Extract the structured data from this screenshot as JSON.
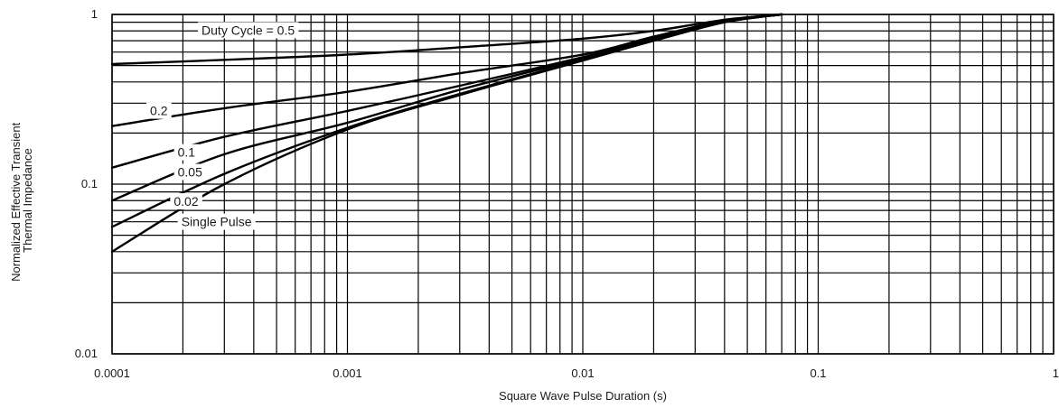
{
  "chart_data": {
    "type": "line",
    "title": "",
    "xlabel": "Square Wave Pulse Duration (s)",
    "ylabel_lines": [
      "Normalized Effective Transient",
      "Thermal Impedance"
    ],
    "x_scale": "log",
    "y_scale": "log",
    "xlim": [
      0.0001,
      1
    ],
    "ylim": [
      0.01,
      1
    ],
    "grid": true,
    "x_ticks": [
      {
        "value": 0.0001,
        "label": "0.0001"
      },
      {
        "value": 0.001,
        "label": "0.001"
      },
      {
        "value": 0.01,
        "label": "0.01"
      },
      {
        "value": 0.1,
        "label": "0.1"
      },
      {
        "value": 1,
        "label": "1"
      }
    ],
    "y_ticks": [
      {
        "value": 0.01,
        "label": "0.01"
      },
      {
        "value": 0.1,
        "label": "0.1"
      },
      {
        "value": 1,
        "label": "1"
      }
    ],
    "series": [
      {
        "name": "Duty Cycle = 0.5",
        "x": [
          0.0001,
          0.0003,
          0.001,
          0.003,
          0.01,
          0.02,
          0.04,
          0.07
        ],
        "y": [
          0.51,
          0.54,
          0.58,
          0.64,
          0.72,
          0.8,
          0.93,
          1.0
        ]
      },
      {
        "name": "0.2",
        "x": [
          0.0001,
          0.0003,
          0.001,
          0.003,
          0.01,
          0.02,
          0.04,
          0.07
        ],
        "y": [
          0.22,
          0.28,
          0.35,
          0.45,
          0.58,
          0.74,
          0.92,
          1.0
        ]
      },
      {
        "name": "0.1",
        "x": [
          0.0001,
          0.0003,
          0.001,
          0.003,
          0.01,
          0.02,
          0.04,
          0.07
        ],
        "y": [
          0.125,
          0.19,
          0.27,
          0.38,
          0.56,
          0.72,
          0.91,
          1.0
        ]
      },
      {
        "name": "0.05",
        "x": [
          0.0001,
          0.0003,
          0.001,
          0.003,
          0.01,
          0.02,
          0.04,
          0.07
        ],
        "y": [
          0.08,
          0.15,
          0.23,
          0.36,
          0.55,
          0.71,
          0.9,
          1.0
        ]
      },
      {
        "name": "0.02",
        "x": [
          0.0001,
          0.0003,
          0.001,
          0.003,
          0.01,
          0.02,
          0.04,
          0.07
        ],
        "y": [
          0.056,
          0.115,
          0.215,
          0.34,
          0.54,
          0.7,
          0.9,
          1.0
        ]
      },
      {
        "name": "Single Pulse",
        "x": [
          0.0001,
          0.0003,
          0.001,
          0.003,
          0.01,
          0.02,
          0.04,
          0.07
        ],
        "y": [
          0.04,
          0.1,
          0.21,
          0.335,
          0.535,
          0.7,
          0.9,
          1.0
        ]
      }
    ],
    "curve_labels": [
      {
        "series": "Duty Cycle = 0.5",
        "text": "Duty Cycle = 0.5",
        "x": 0.00024,
        "y": 0.76
      },
      {
        "series": "0.2",
        "text": "0.2",
        "x": 0.000145,
        "y": 0.255
      },
      {
        "series": "0.1",
        "text": "0.1",
        "x": 0.00019,
        "y": 0.145
      },
      {
        "series": "0.05",
        "text": "0.05",
        "x": 0.00019,
        "y": 0.111
      },
      {
        "series": "0.02",
        "text": "0.02",
        "x": 0.000183,
        "y": 0.0745
      },
      {
        "series": "Single Pulse",
        "text": "Single Pulse",
        "x": 0.000197,
        "y": 0.0565
      }
    ]
  }
}
